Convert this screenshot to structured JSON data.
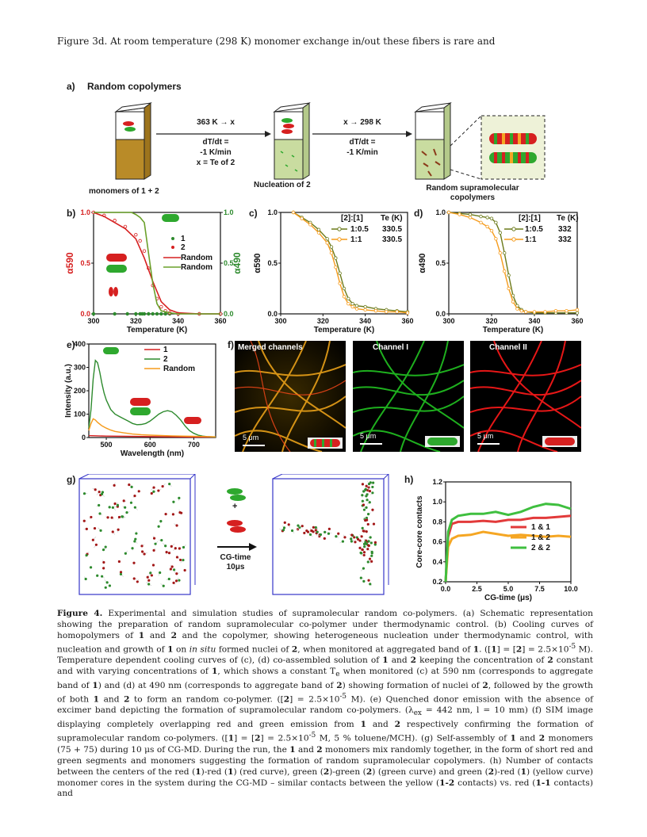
{
  "intro_text": "Figure 3d. At room temperature (298 K) monomer exchange in/out these fibers is rare and",
  "panel_a": {
    "label": "a)",
    "title": "Random copolymers",
    "step1_line1": "363 K → x",
    "step1_line2": "dT/dt =",
    "step1_line3": "-1 K/min",
    "step1_line4": "x = Te of 2",
    "step2_line1": "x → 298 K",
    "step2_line2": "dT/dt =",
    "step2_line3": "-1 K/min",
    "caption1": "monomers of 1 + 2",
    "caption2": "Nucleation of 2",
    "caption3_line1": "Random supramolecular",
    "caption3_line2": "copolymers"
  },
  "panel_labels": {
    "b": "b)",
    "c": "c)",
    "d": "d)",
    "e": "e)",
    "f": "f)",
    "g": "g)",
    "h": "h)"
  },
  "panel_f": {
    "ch1": "Merged channels",
    "ch2": "Channel I",
    "ch3": "Channel II",
    "scale": "5 μm"
  },
  "panel_g": {
    "arrow_line1": "CG-time",
    "arrow_line2": "10μs",
    "plus": "+"
  },
  "chart_data": [
    {
      "id": "b",
      "type": "scatter",
      "xlabel": "Temperature (K)",
      "ylabel_left": "α590",
      "ylabel_right": "α490",
      "xlim": [
        300,
        360
      ],
      "ylim": [
        0,
        1
      ],
      "xticks": [
        300,
        320,
        340,
        360
      ],
      "yticks_left": [
        0.0,
        0.5,
        1.0
      ],
      "yticks_right": [
        0.0,
        0.5,
        1.0
      ],
      "legend": [
        "1",
        "2",
        "Random",
        "Random"
      ],
      "series": [
        {
          "name": "1",
          "color": "#2d8a2d",
          "x": [
            300,
            310,
            316,
            320,
            322,
            323,
            324,
            326,
            328,
            330,
            332,
            334,
            336,
            340,
            350,
            360
          ],
          "y": [
            0,
            0,
            0,
            0,
            0,
            0,
            0,
            0,
            0,
            0,
            0,
            0,
            0,
            0,
            0,
            0
          ]
        },
        {
          "name": "2",
          "color": "#d62020",
          "x": [
            300,
            305,
            310,
            315,
            320,
            322,
            324,
            326,
            328,
            330,
            332,
            334,
            336,
            340,
            350,
            360
          ],
          "y": [
            1.0,
            0.97,
            0.92,
            0.86,
            0.78,
            0.72,
            0.62,
            0.45,
            0.28,
            0.15,
            0.07,
            0.03,
            0.01,
            0,
            0,
            0
          ]
        },
        {
          "name": "Random",
          "color": "#d62020",
          "x": [
            300,
            305,
            310,
            315,
            320,
            324,
            328,
            332,
            336,
            340,
            350,
            360
          ],
          "y": [
            1.0,
            0.96,
            0.9,
            0.84,
            0.74,
            0.55,
            0.32,
            0.12,
            0.04,
            0.01,
            0,
            0
          ]
        },
        {
          "name": "Random",
          "color": "#6aa02a",
          "x": [
            300,
            318,
            320,
            322,
            324,
            326,
            328,
            330,
            332,
            336,
            340,
            350,
            360
          ],
          "y": [
            1.0,
            1.0,
            0.98,
            0.95,
            0.9,
            0.6,
            0.3,
            0.1,
            0.03,
            0.01,
            0,
            0,
            0
          ]
        }
      ]
    },
    {
      "id": "c",
      "type": "line",
      "xlabel": "Temperature (K)",
      "ylabel": "α590",
      "xlim": [
        300,
        360
      ],
      "ylim": [
        0,
        1
      ],
      "xticks": [
        300,
        320,
        340,
        360
      ],
      "yticks": [
        0.0,
        0.5,
        1.0
      ],
      "legend_header": [
        "[2]:[1]",
        "Te (K)"
      ],
      "series": [
        {
          "name": "1:0.5",
          "te": "330.5",
          "color": "#6b7a1a",
          "x": [
            306,
            310,
            314,
            318,
            322,
            324,
            326,
            328,
            330,
            332,
            334,
            336,
            340,
            345,
            350,
            355,
            360
          ],
          "y": [
            1.0,
            0.95,
            0.9,
            0.83,
            0.74,
            0.66,
            0.55,
            0.4,
            0.25,
            0.15,
            0.1,
            0.08,
            0.07,
            0.05,
            0.04,
            0.03,
            0.02
          ]
        },
        {
          "name": "1:1",
          "te": "330.5",
          "color": "#f59b1c",
          "x": [
            306,
            310,
            314,
            318,
            322,
            324,
            326,
            328,
            330,
            332,
            334,
            336,
            340,
            345,
            350,
            355,
            360
          ],
          "y": [
            1.0,
            0.94,
            0.88,
            0.8,
            0.7,
            0.6,
            0.46,
            0.3,
            0.17,
            0.1,
            0.07,
            0.05,
            0.04,
            0.03,
            0.02,
            0.02,
            0.01
          ]
        }
      ]
    },
    {
      "id": "d",
      "type": "line",
      "xlabel": "Temperature (K)",
      "ylabel": "α490",
      "xlim": [
        300,
        360
      ],
      "ylim": [
        0,
        1
      ],
      "xticks": [
        300,
        320,
        340,
        360
      ],
      "yticks": [
        0.0,
        0.5,
        1.0
      ],
      "legend_header": [
        "[2]:[1]",
        "Te (K)"
      ],
      "series": [
        {
          "name": "1:0.5",
          "te": "332",
          "color": "#6b7a1a",
          "x": [
            300,
            305,
            310,
            315,
            318,
            320,
            322,
            324,
            326,
            328,
            330,
            332,
            334,
            336,
            340,
            345,
            350,
            355,
            360
          ],
          "y": [
            1.0,
            0.99,
            0.98,
            0.96,
            0.95,
            0.94,
            0.9,
            0.8,
            0.6,
            0.38,
            0.18,
            0.08,
            0.04,
            0.02,
            0.01,
            0.01,
            0.01,
            0.01,
            0.01
          ]
        },
        {
          "name": "1:1",
          "te": "332",
          "color": "#f59b1c",
          "x": [
            300,
            305,
            310,
            315,
            318,
            320,
            322,
            324,
            326,
            328,
            330,
            332,
            334,
            336,
            340,
            345,
            350,
            355,
            360
          ],
          "y": [
            1.0,
            0.98,
            0.95,
            0.9,
            0.86,
            0.82,
            0.74,
            0.6,
            0.42,
            0.25,
            0.12,
            0.05,
            0.03,
            0.02,
            0.02,
            0.02,
            0.03,
            0.03,
            0.04
          ]
        }
      ]
    },
    {
      "id": "e",
      "type": "line",
      "xlabel": "Wavelength (nm)",
      "ylabel": "Intensity (a.u.)",
      "xlim": [
        460,
        750
      ],
      "ylim": [
        0,
        400
      ],
      "xticks": [
        500,
        600,
        700
      ],
      "yticks": [
        0,
        100,
        200,
        300,
        400
      ],
      "series": [
        {
          "name": "1",
          "color": "#d62020",
          "x": [
            460,
            500,
            550,
            600,
            650,
            700,
            750
          ],
          "y": [
            8,
            6,
            5,
            4,
            3,
            2,
            2
          ]
        },
        {
          "name": "2",
          "color": "#2d8a2d",
          "x": [
            460,
            465,
            470,
            475,
            480,
            485,
            490,
            495,
            500,
            510,
            520,
            530,
            540,
            550,
            560,
            570,
            580,
            590,
            600,
            610,
            620,
            630,
            640,
            650,
            660,
            670,
            680,
            690,
            700,
            710,
            720,
            730,
            740,
            750
          ],
          "y": [
            40,
            120,
            250,
            330,
            320,
            280,
            230,
            190,
            160,
            120,
            100,
            90,
            80,
            70,
            60,
            55,
            56,
            60,
            70,
            85,
            100,
            110,
            115,
            110,
            95,
            75,
            50,
            30,
            18,
            10,
            6,
            4,
            3,
            2
          ]
        },
        {
          "name": "Random",
          "color": "#f59b1c",
          "x": [
            460,
            465,
            470,
            475,
            480,
            490,
            500,
            510,
            520,
            540,
            560,
            580,
            600,
            650,
            700,
            750
          ],
          "y": [
            30,
            60,
            80,
            75,
            65,
            50,
            40,
            32,
            26,
            20,
            15,
            12,
            10,
            7,
            5,
            3
          ]
        }
      ]
    },
    {
      "id": "h",
      "type": "line",
      "xlabel": "CG-time (μs)",
      "ylabel": "Core-core contacts",
      "xlim": [
        0,
        10
      ],
      "ylim": [
        0.2,
        1.2
      ],
      "xticks": [
        0.0,
        2.5,
        5.0,
        7.5,
        10.0
      ],
      "yticks": [
        0.2,
        0.4,
        0.6,
        0.8,
        1.0,
        1.2
      ],
      "series": [
        {
          "name": "1 & 1",
          "color": "#e23a3a",
          "x": [
            0,
            0.2,
            0.5,
            1,
            2,
            3,
            4,
            5,
            6,
            7,
            8,
            9,
            10
          ],
          "y": [
            0.2,
            0.65,
            0.78,
            0.8,
            0.8,
            0.81,
            0.8,
            0.82,
            0.82,
            0.84,
            0.84,
            0.85,
            0.86
          ]
        },
        {
          "name": "1 & 2",
          "color": "#f5a623",
          "x": [
            0,
            0.2,
            0.5,
            1,
            2,
            3,
            4,
            5,
            6,
            7,
            8,
            9,
            10
          ],
          "y": [
            0.2,
            0.55,
            0.63,
            0.66,
            0.67,
            0.7,
            0.68,
            0.66,
            0.67,
            0.66,
            0.65,
            0.66,
            0.65
          ]
        },
        {
          "name": "2 & 2",
          "color": "#3fbf3f",
          "x": [
            0,
            0.2,
            0.5,
            1,
            2,
            3,
            4,
            5,
            6,
            7,
            8,
            9,
            10
          ],
          "y": [
            0.2,
            0.7,
            0.82,
            0.86,
            0.88,
            0.88,
            0.9,
            0.87,
            0.9,
            0.95,
            0.98,
            0.97,
            0.93
          ]
        }
      ]
    }
  ],
  "caption": {
    "p1_bold": "Figure 4.",
    "p1": " Experimental and simulation studies of supramolecular random co-polymers. (a) Schematic representation showing the preparation of random supramolecular co-polymer under thermodynamic control. (b) Cooling curves of homopolymers of ",
    "p2": " and ",
    "p3": " and the copolymer, showing heterogeneous nucleation under thermodynamic control, with nucleation and growth of ",
    "p4": " on ",
    "p4_italic": "in situ",
    "p5": " formed nuclei of ",
    "p6": ", when monitored at aggregated band of ",
    "p7": ". ([",
    "p8": "] = [",
    "p9": "] = 2.5×10",
    "p9_sup": "-5",
    "p10": " M). Temperature dependent cooling curves of (c), (d) co-assembled solution of ",
    "p11": " and ",
    "p12": " keeping the concentration of ",
    "p13": " constant and with varying concentrations of ",
    "p14": ", which shows a constant T",
    "p14_sub": "e",
    "p15": " when monitored (c) at 590 nm (corresponds to aggregate band of ",
    "p16": ") and (d) at 490 nm (corresponds to aggregate band of ",
    "p17": ") showing formation of nuclei of ",
    "p18": ", followed by the growth of both ",
    "p19": " and ",
    "p20": " to form an random co-polymer. ([",
    "p21": "] = 2.5×10",
    "p21_sup": "-5",
    "p22": " M). (e) Quenched donor emission with the absence of excimer band depicting the formation of supramolecular random co-polymers. (λ",
    "p22_sub": "ex",
    "p23": " = 442 nm, l = 10 mm) (f) SIM image displaying completely overlapping red and green emission from ",
    "p24": " and ",
    "p25": " respectively confirming the formation of supramolecular random co-polymers. ([",
    "p26": "] = [",
    "p27": "] = 2.5×10",
    "p27_sup": "-5",
    "p28": " M, 5 % toluene/MCH). (g) Self-assembly of ",
    "p29": " and ",
    "p30": " monomers (75 + 75) during 10 μs of CG-MD. During the run, the ",
    "p31": " and ",
    "p32": " monomers mix randomly together, in the form of short red and green segments and monomers suggesting the formation of random supramolecular copolymers. (h) Number of contacts between the centers of the red (",
    "p33": ")-red (",
    "p34": ") (red curve), green (",
    "p35": ")-green (",
    "p36": ") (green curve) and green (",
    "p37": ")-red (",
    "p38": ") (yellow curve) monomer cores in the system during the CG-MD – similar contacts between the yellow (",
    "p39": " contacts) vs. red (",
    "p40": " contacts) and",
    "n1": "1",
    "n2": "2",
    "n12": "1-2",
    "n11": "1-1"
  }
}
